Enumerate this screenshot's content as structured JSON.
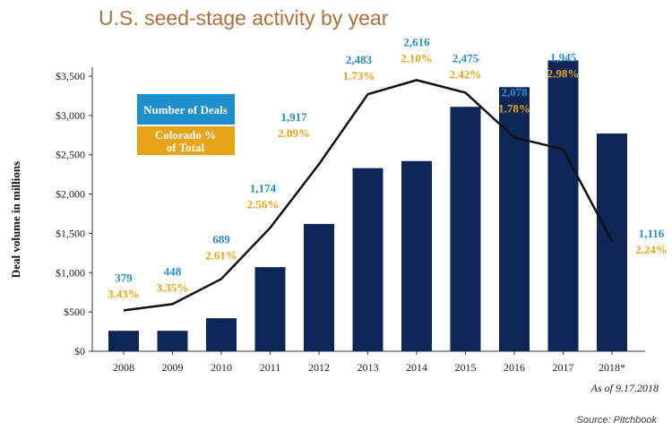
{
  "chart_data": {
    "type": "bar",
    "title": "U.S. seed-stage activity by year",
    "ylabel": "Deal volume in millions",
    "ylim": [
      0,
      3500
    ],
    "yticks": [
      0,
      500,
      1000,
      1500,
      2000,
      2500,
      3000,
      3500
    ],
    "ytick_labels": [
      "$0",
      "$500",
      "$1,000",
      "$1,500",
      "$2,000",
      "$2,500",
      "$3,000",
      "$3,500"
    ],
    "categories": [
      "2008",
      "2009",
      "2010",
      "2011",
      "2012",
      "2013",
      "2014",
      "2015",
      "2016",
      "2017",
      "2018*"
    ],
    "values": [
      260,
      260,
      420,
      1070,
      1620,
      2330,
      2420,
      3110,
      3360,
      3700,
      2770
    ],
    "line_series": {
      "values": [
        520,
        600,
        920,
        1570,
        2380,
        3270,
        3450,
        3290,
        2720,
        2570,
        1400
      ],
      "deal_labels": [
        "379",
        "448",
        "689",
        "1,174",
        "1,917",
        "2,483",
        "2,616",
        "2,475",
        "2,078",
        "1,945",
        "1,116"
      ],
      "pct_labels": [
        "3.43%",
        "3.35%",
        "2.61%",
        "2.56%",
        "2.09%",
        "1.73%",
        "2.10%",
        "2.42%",
        "1.78%",
        "2.98%",
        "2.24%"
      ]
    },
    "legend": {
      "placement": "top-left",
      "items": [
        {
          "label": "Number of Deals",
          "color": "#1f8fcb"
        },
        {
          "label": "Colorado %\nof Total",
          "color": "#e8a417"
        }
      ]
    },
    "note": "As of 9.17.2018",
    "source": "Source: Pitchbook",
    "colors": {
      "bar": "#0d2657",
      "line": "#111111",
      "title": "#b0703a",
      "deal_label": "#2a8fc8",
      "pct_label": "#e8a417"
    },
    "grid": false
  }
}
